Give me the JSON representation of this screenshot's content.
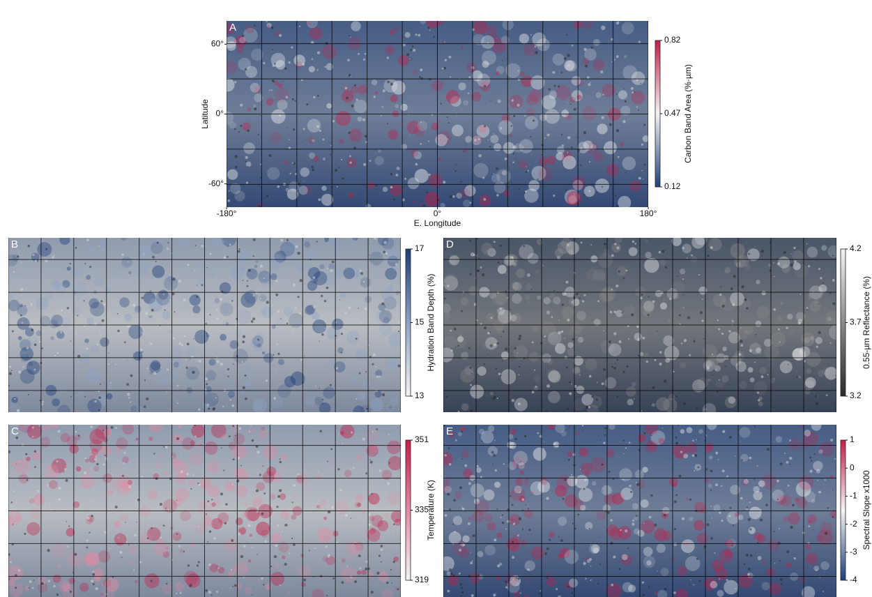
{
  "panels": [
    {
      "label": "A",
      "colorbar": {
        "label": "Carbon Band Area (%·µm)",
        "range": [
          0.12,
          0.82
        ],
        "ticks": [
          0.12,
          0.47,
          0.82
        ],
        "colors": [
          "#1f3f7a",
          "#f4f4f4",
          "#c41e4a"
        ]
      },
      "axes": {
        "ylabel": "Latitude",
        "xlabel": "E. Longitude",
        "ylim": [
          -80,
          80
        ],
        "xlim": [
          -180,
          180
        ],
        "yticks": [
          {
            "value": 60,
            "label": "60°"
          },
          {
            "value": 0,
            "label": "0°"
          },
          {
            "value": -60,
            "label": "-60°"
          }
        ],
        "xticks": [
          {
            "value": -180,
            "label": "-180°"
          },
          {
            "value": 0,
            "label": "0°"
          },
          {
            "value": 180,
            "label": "180°"
          }
        ]
      }
    },
    {
      "label": "B",
      "colorbar": {
        "label": "Hydration Band Depth (%)",
        "range": [
          13,
          17
        ],
        "ticks": [
          13,
          15,
          17
        ],
        "colors": [
          "#f4f4f4",
          "#8fa3c4",
          "#1f3f7a"
        ]
      }
    },
    {
      "label": "D",
      "colorbar": {
        "label": "0.55-µm Reflectance (%)",
        "range": [
          3.2,
          4.2
        ],
        "ticks": [
          3.2,
          3.7,
          4.2
        ],
        "colors": [
          "#2a2a2a",
          "#8a8a8a",
          "#f4f4f4"
        ]
      }
    },
    {
      "label": "C",
      "colorbar": {
        "label": "Temperature (K)",
        "range": [
          319,
          351
        ],
        "ticks": [
          319,
          335,
          351
        ],
        "colors": [
          "#f4f4f4",
          "#e48aa4",
          "#c41e4a"
        ]
      }
    },
    {
      "label": "E",
      "colorbar": {
        "label": "Spectral Slope x1000",
        "range": [
          -4,
          1
        ],
        "ticks": [
          -4,
          -3,
          -2,
          -1,
          0,
          1
        ],
        "colors": [
          "#1f3f7a",
          "#f4f4f4",
          "#c41e4a"
        ]
      }
    }
  ]
}
